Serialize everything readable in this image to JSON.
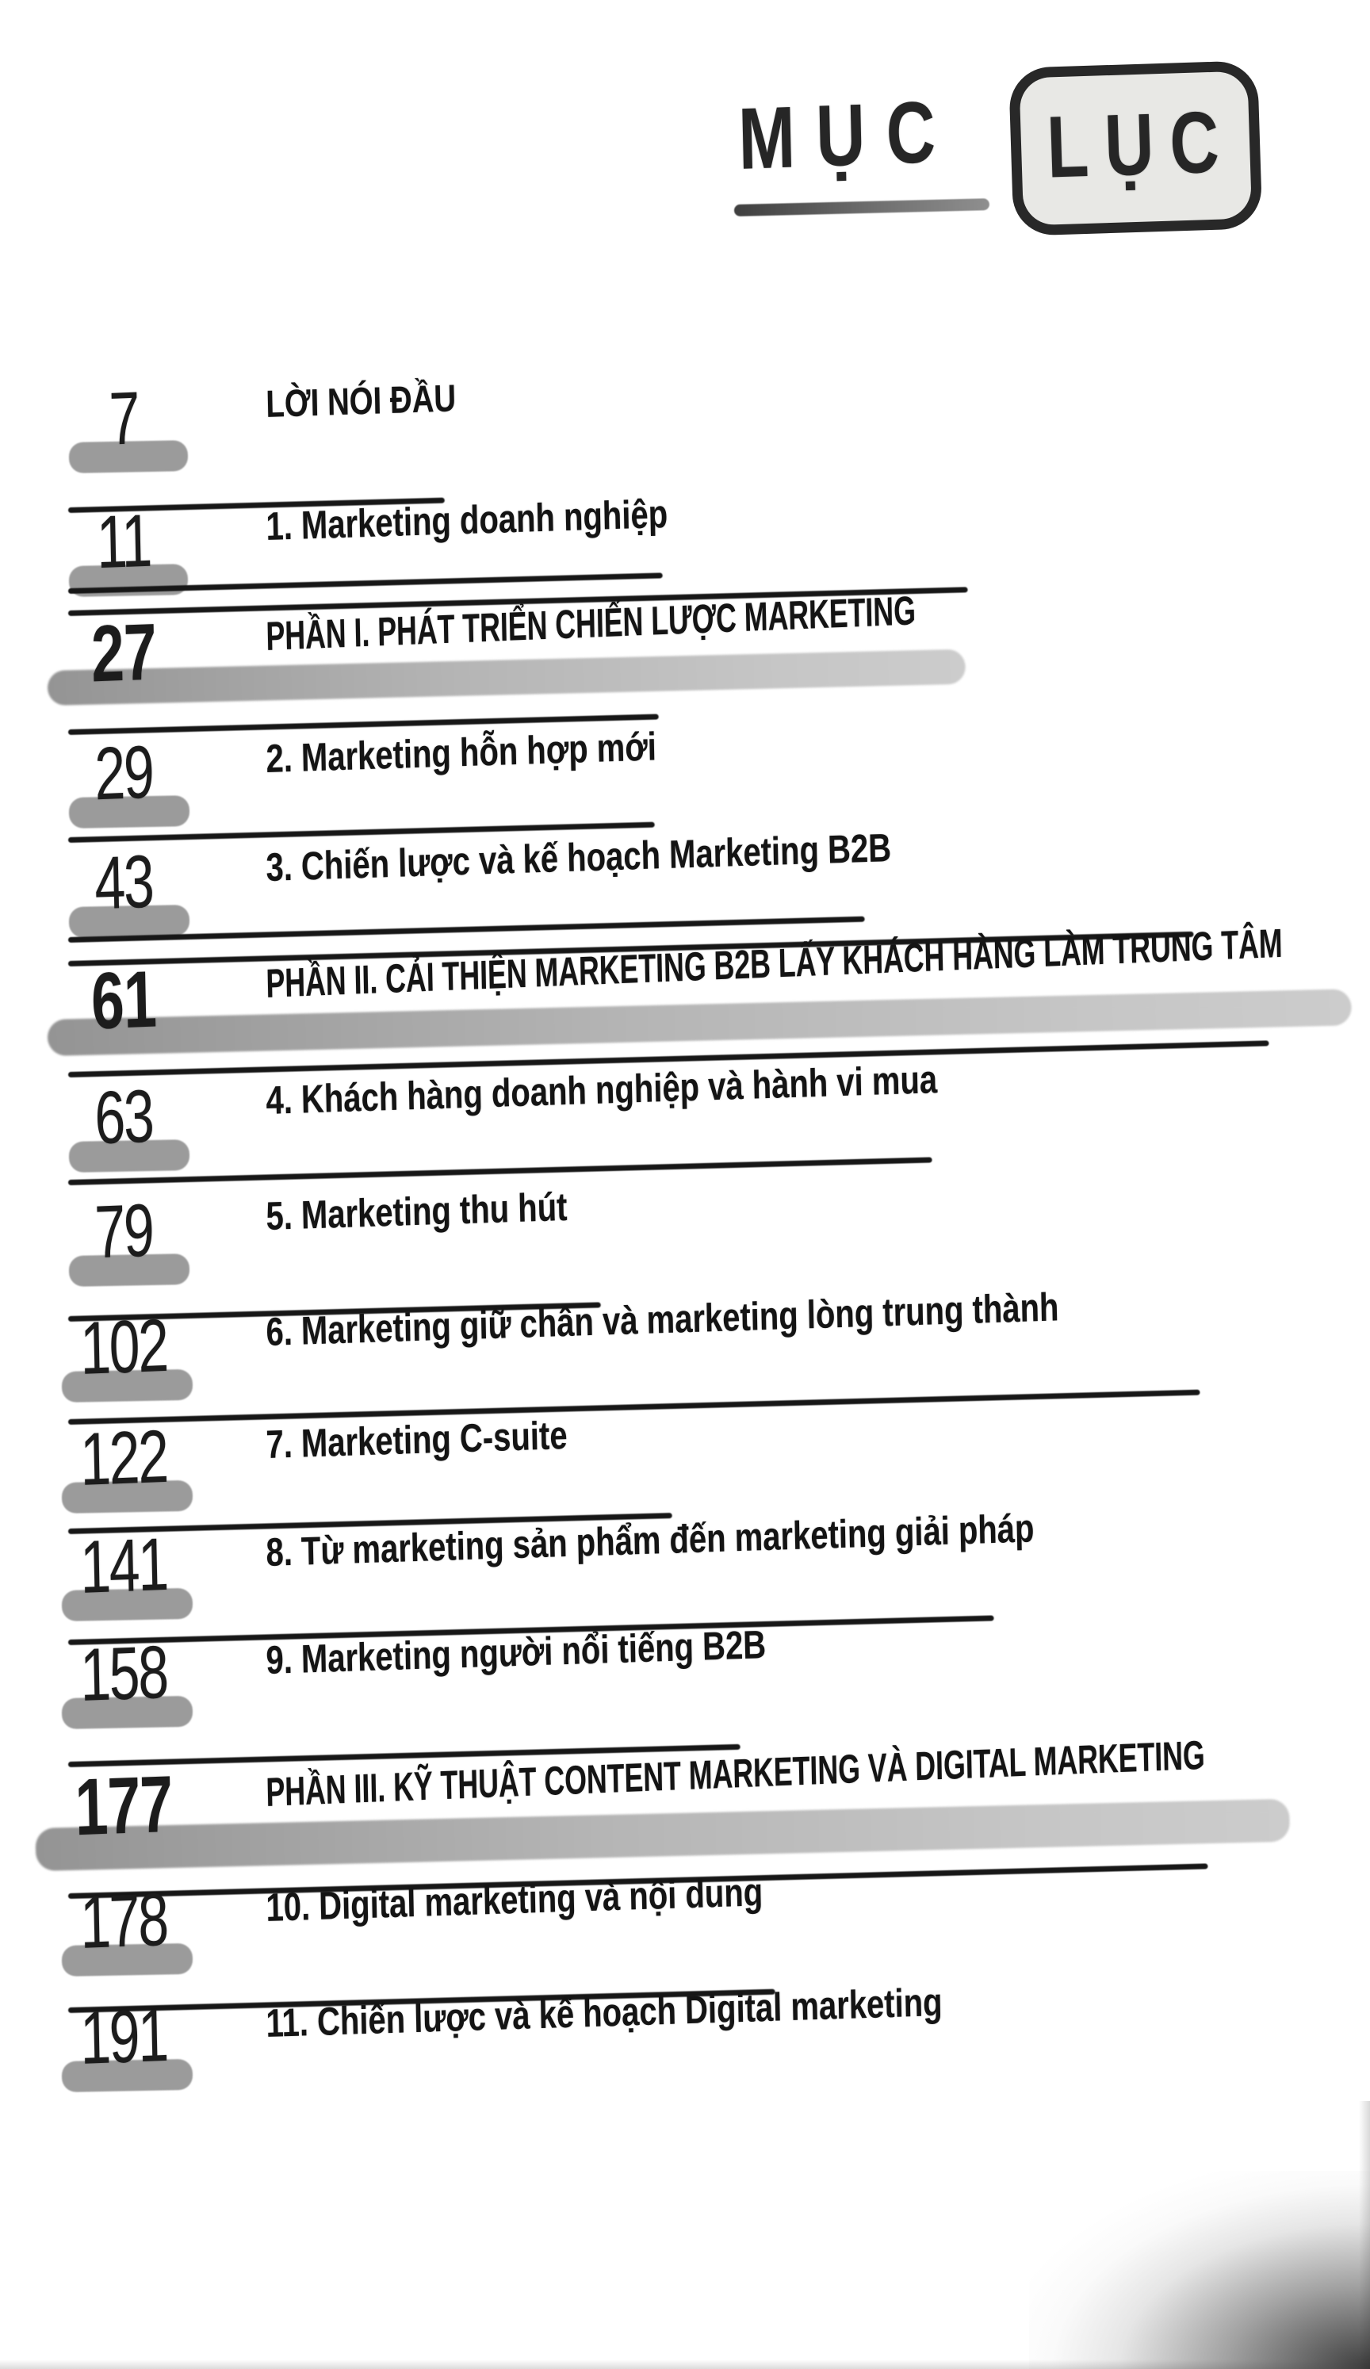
{
  "title": {
    "part1": "MỤC",
    "part2": "LỤC"
  },
  "colors": {
    "ink": "#1c1c1c",
    "highlight": "#9b9b9b",
    "box_fill": "#e8e8e5"
  },
  "entries": [
    {
      "page": "7",
      "label": "LỜI NÓI ĐẦU",
      "kind": "front"
    },
    {
      "page": "11",
      "label": "1. Marketing doanh nghiệp",
      "kind": "chapter"
    },
    {
      "page": "27",
      "label": "PHẦN I. PHÁT TRIỂN CHIẾN LƯỢC MARKETING",
      "kind": "section"
    },
    {
      "page": "29",
      "label": "2. Marketing hỗn hợp mới",
      "kind": "chapter"
    },
    {
      "page": "43",
      "label": "3. Chiến lược và kế hoạch Marketing B2B",
      "kind": "chapter"
    },
    {
      "page": "61",
      "label": "PHẦN II. CẢI THIỆN MARKETING B2B LẤY KHÁCH HÀNG LÀM TRUNG TÂM",
      "kind": "section"
    },
    {
      "page": "63",
      "label": "4. Khách hàng doanh nghiệp và hành vi mua",
      "kind": "chapter"
    },
    {
      "page": "79",
      "label": "5. Marketing thu hút",
      "kind": "chapter"
    },
    {
      "page": "102",
      "label": "6. Marketing giữ chân và marketing lòng trung thành",
      "kind": "chapter"
    },
    {
      "page": "122",
      "label": "7. Marketing C-suite",
      "kind": "chapter"
    },
    {
      "page": "141",
      "label": "8. Từ marketing sản phẩm đến marketing giải pháp",
      "kind": "chapter"
    },
    {
      "page": "158",
      "label": "9. Marketing người nổi tiếng B2B",
      "kind": "chapter"
    },
    {
      "page": "177",
      "label": "PHẦN III. KỸ THUẬT CONTENT MARKETING VÀ DIGITAL MARKETING",
      "kind": "section"
    },
    {
      "page": "178",
      "label": "10. Digital marketing và nội dung",
      "kind": "chapter"
    },
    {
      "page": "191",
      "label": "11. Chiến lược và kế hoạch Digital marketing",
      "kind": "chapter"
    }
  ]
}
